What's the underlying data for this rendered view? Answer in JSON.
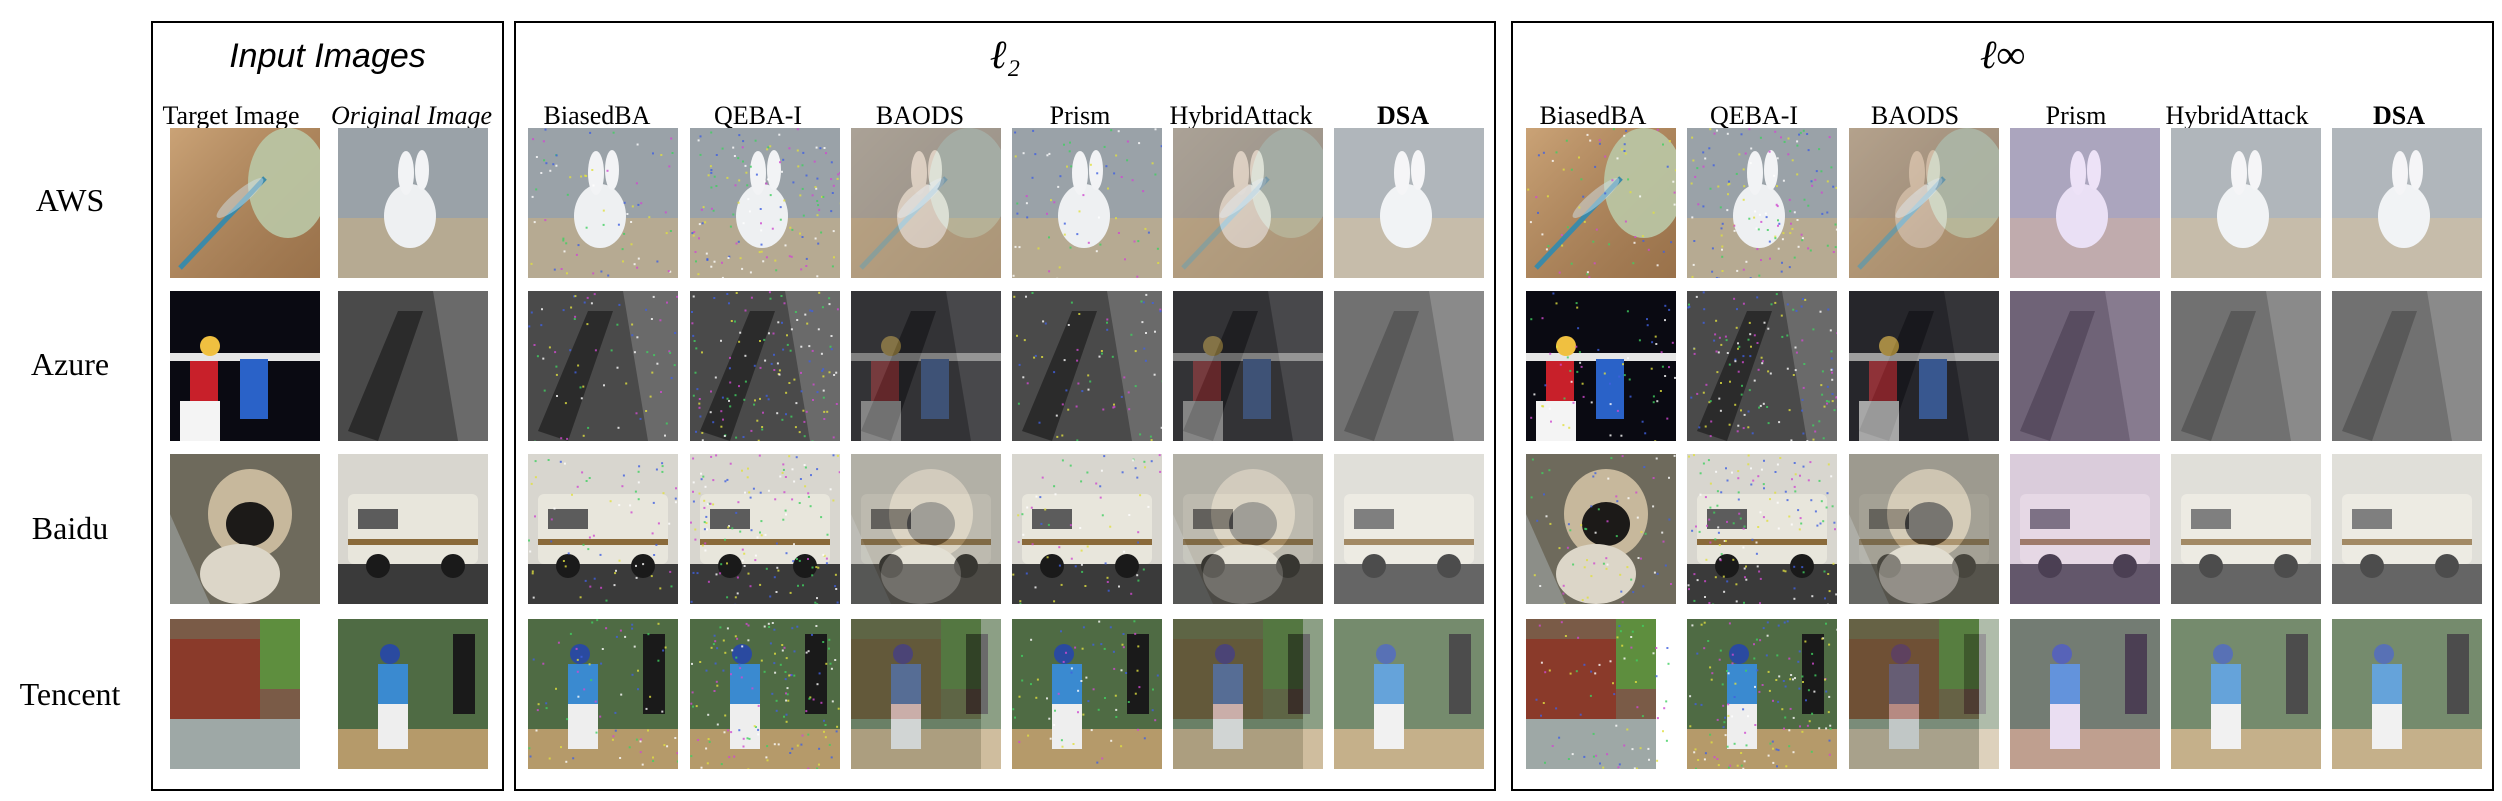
{
  "figure": {
    "input_panel": {
      "title": "Input Images",
      "columns": [
        "Target Image",
        "Original Image"
      ]
    },
    "l2_panel": {
      "title": "ℓ₂",
      "columns": [
        "BiasedBA",
        "QEBA-I",
        "BAODS",
        "Prism",
        "HybridAttack",
        "DSA"
      ]
    },
    "linf_panel": {
      "title": "ℓ∞",
      "columns": [
        "BiasedBA",
        "QEBA-I",
        "BAODS",
        "Prism",
        "HybridAttack",
        "DSA"
      ]
    },
    "rows": [
      "AWS",
      "Azure",
      "Baidu",
      "Tencent"
    ],
    "images": {
      "AWS": {
        "target": "dragonfly",
        "original": "rabbit"
      },
      "Azure": {
        "target": "volleyball",
        "original": "bench"
      },
      "Baidu": {
        "target": "pug",
        "original": "rv"
      },
      "Tencent": {
        "target": "houseboat",
        "original": "baseball"
      }
    },
    "colors": {
      "border": "#000000",
      "dragonfly_bg": "#b98c5c",
      "rabbit_bg": "#9aa2a8",
      "volleyball_bg": "#0a0a12",
      "bench_bg": "#4a4a4a",
      "pug_bg": "#6e6a5c",
      "rv_bg": "#d8d6cf",
      "houseboat_bg": "#7a5b47",
      "baseball_bg": "#4f6b44"
    }
  }
}
